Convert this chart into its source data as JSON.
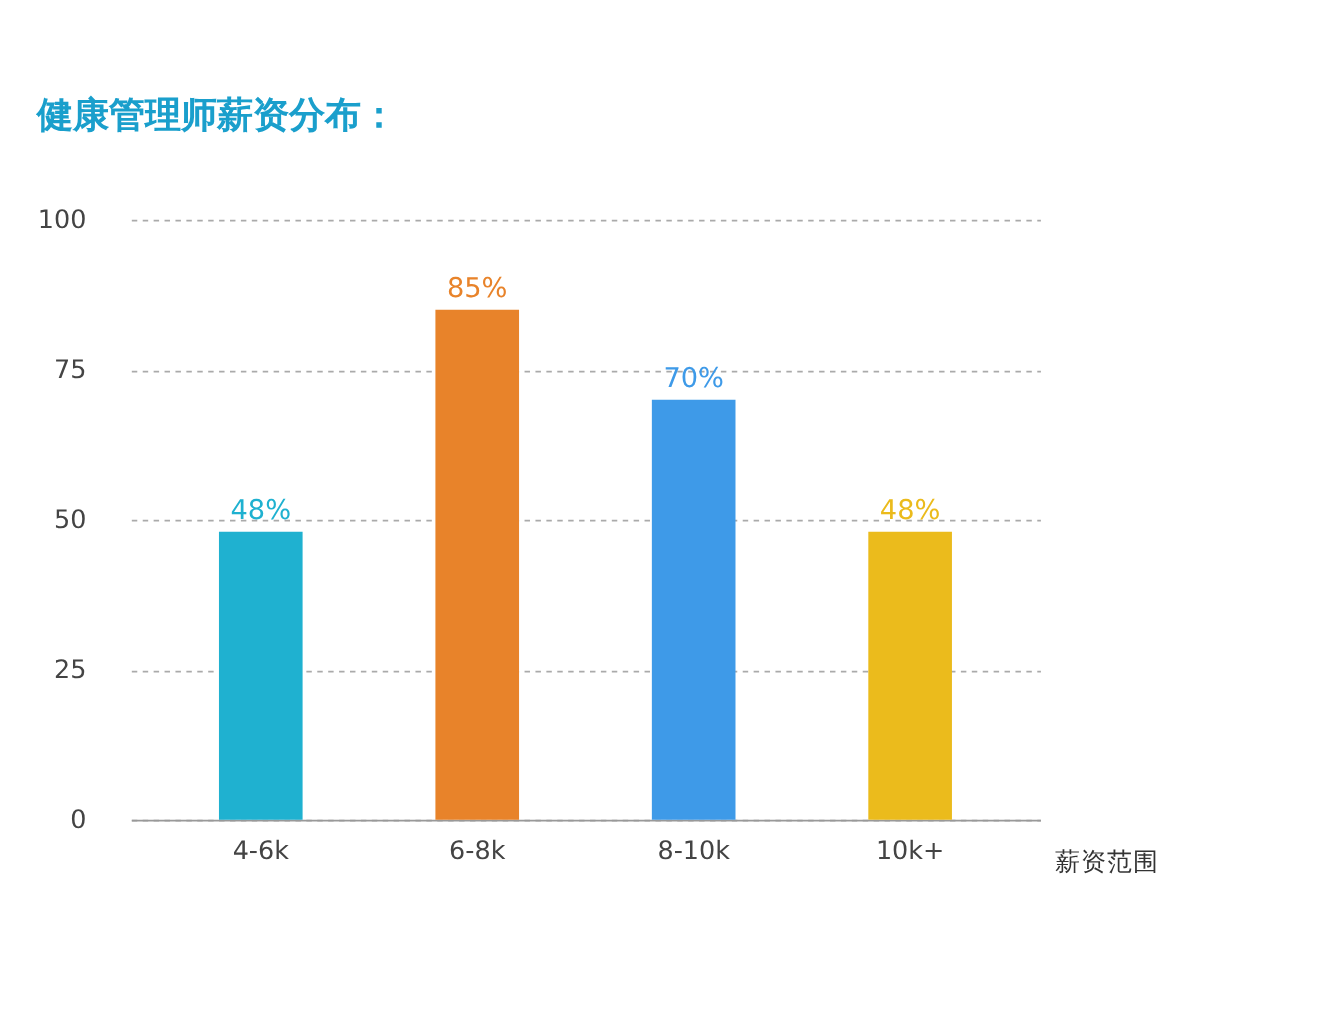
{
  "chart_data": {
    "type": "bar",
    "title": "健康管理师薪资分布：",
    "xlabel": "薪资范围",
    "categories": [
      "4-6k",
      "6-8k",
      "8-10k",
      "10k+"
    ],
    "values": [
      48,
      85,
      70,
      48
    ],
    "colors": [
      "#1fb1d0",
      "#e8832a",
      "#3e9ae8",
      "#ebbb1c"
    ],
    "value_labels": [
      "48%",
      "85%",
      "70%",
      "48%"
    ],
    "ylim": [
      0,
      100
    ],
    "yticks": [
      0,
      25,
      50,
      75,
      100
    ],
    "grid": "y"
  }
}
